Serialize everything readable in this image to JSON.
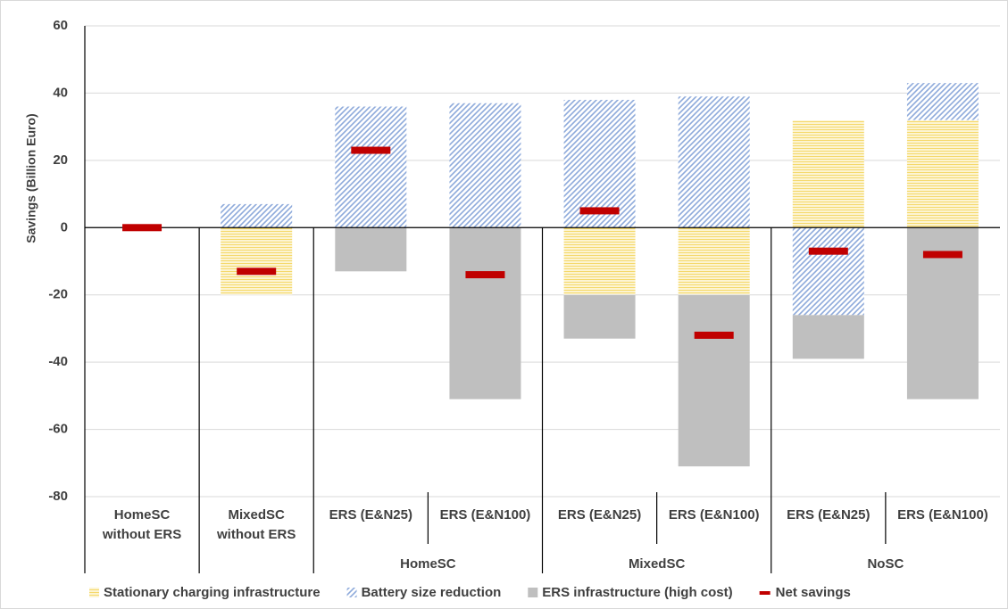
{
  "chart_data": {
    "type": "bar",
    "stacked": true,
    "y_label": "Savings (Billion Euro)",
    "categories": [
      "HomeSC without ERS",
      "MixedSC without ERS",
      "ERS (E&N25)",
      "ERS (E&N100)",
      "ERS (E&N25)",
      "ERS (E&N100)",
      "ERS (E&N25)",
      "ERS (E&N100)"
    ],
    "category_groups": [
      null,
      null,
      "HomeSC",
      "HomeSC",
      "MixedSC",
      "MixedSC",
      "NoSC",
      "NoSC"
    ],
    "series": [
      {
        "name": "Stationary charging infrastructure",
        "color": "#f5d96b",
        "pattern": "horizontal",
        "values": [
          0,
          -20,
          0,
          0,
          -20,
          -20,
          32,
          32
        ]
      },
      {
        "name": "Battery size reduction",
        "color": "#8eaadb",
        "pattern": "diagonal",
        "values": [
          0,
          7,
          36,
          37,
          38,
          39,
          -26,
          11
        ]
      },
      {
        "name": "ERS infrastructure (high cost)",
        "color": "#bfbfbf",
        "pattern": "solid",
        "values": [
          0,
          0,
          -13,
          -51,
          -13,
          -51,
          -13,
          -51
        ]
      }
    ],
    "net_savings": {
      "name": "Net savings",
      "color": "#c00000",
      "values": [
        0,
        -13,
        23,
        -14,
        5,
        -32,
        -7,
        -8
      ]
    },
    "ylim": [
      -80,
      60
    ],
    "yticks": [
      -80,
      -60,
      -40,
      -20,
      0,
      20,
      40,
      60
    ],
    "grid": true,
    "legend": "bottom"
  }
}
